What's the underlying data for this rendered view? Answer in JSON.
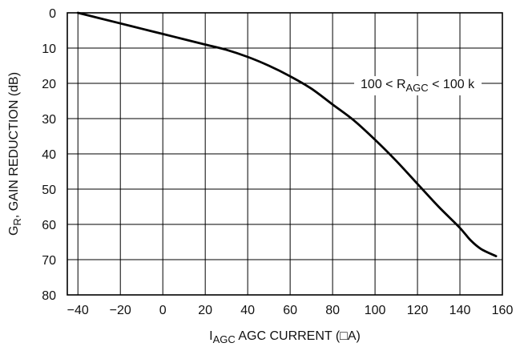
{
  "chart_data": {
    "type": "line",
    "xlabel_sub": "AGC",
    "xlabel_prefix": "I",
    "xlabel_rest": " AGC CURRENT (□A)",
    "ylabel_prefix": "G",
    "ylabel_sub": "R",
    "ylabel_rest": ", GAIN REDUCTION (dB)",
    "xlim": [
      -45,
      160
    ],
    "ylim": [
      0,
      80
    ],
    "y_inverted": true,
    "x_ticks": [
      -40,
      -20,
      0,
      20,
      40,
      60,
      80,
      100,
      120,
      140,
      160
    ],
    "x_tick_labels": [
      "−40",
      "−20",
      "0",
      "20",
      "40",
      "60",
      "80",
      "100",
      "120",
      "140",
      "160"
    ],
    "y_ticks": [
      0,
      10,
      20,
      30,
      40,
      50,
      60,
      70,
      80
    ],
    "grid": true,
    "annotation": {
      "prefix": "100 < R",
      "sub": "AGC",
      "suffix": " < 100 k",
      "x": 120,
      "y": 20
    },
    "series": [
      {
        "color": "#000000",
        "x": [
          -40,
          -30,
          -20,
          -10,
          0,
          10,
          20,
          30,
          40,
          50,
          60,
          70,
          80,
          90,
          100,
          110,
          120,
          130,
          140,
          145,
          150,
          157
        ],
        "y": [
          0,
          1.5,
          3,
          4.5,
          6,
          7.5,
          9,
          10.5,
          12.5,
          15,
          18,
          21.5,
          26,
          30.5,
          36,
          42,
          48.5,
          55,
          61,
          64.5,
          67,
          69
        ]
      }
    ]
  }
}
